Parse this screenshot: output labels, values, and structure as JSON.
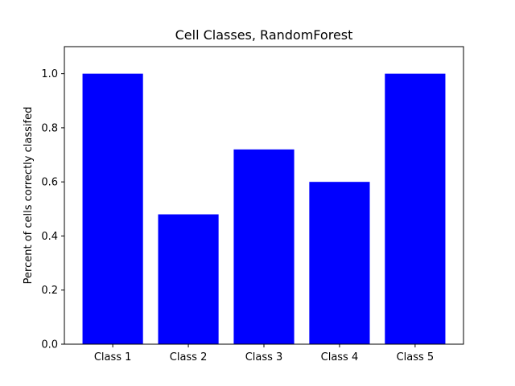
{
  "chart_data": {
    "type": "bar",
    "title": "Cell Classes, RandomForest",
    "xlabel": "",
    "ylabel": "Percent of cells correctly classifed",
    "categories": [
      "Class 1",
      "Class 2",
      "Class 3",
      "Class 4",
      "Class 5"
    ],
    "values": [
      1.0,
      0.48,
      0.72,
      0.6,
      1.0
    ],
    "ylim": [
      0,
      1.1
    ],
    "yticks": [
      0.0,
      0.2,
      0.4,
      0.6,
      0.8,
      1.0
    ],
    "ytick_labels": [
      "0.0",
      "0.2",
      "0.4",
      "0.6",
      "0.8",
      "1.0"
    ],
    "bar_color": "#0000ff",
    "grid": false,
    "legend": "none"
  }
}
